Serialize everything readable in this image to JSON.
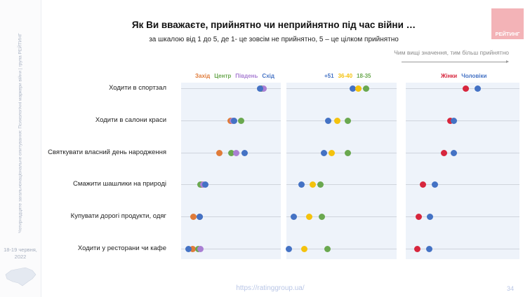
{
  "sidebar": {
    "vertical_text": "Чотирнадцяте загальнонаціональне опитування: Психологічні маркери війни | група РЕЙТИНГ",
    "date": "18-19 червня, 2022"
  },
  "header": {
    "title": "Як Ви вважаєте, прийнятно чи неприйнятно під час війни …",
    "subtitle": "за шкалою від 1 до 5, де 1- це зовсім не прийнятно, 5 – це цілком прийнятно",
    "logo_text": "РЕЙТИНГ",
    "hint": "Чим вищі значення, тим більш прийнятно"
  },
  "footer": {
    "url": "https://ratinggroup.ua/",
    "page": "34"
  },
  "chart_data": {
    "type": "scatter",
    "title": "Як Ви вважаєте, прийнятно чи неприйнятно під час війни …",
    "note": "approximate relative values; no axis shown",
    "categories": [
      "Ходити в спортзал",
      "Ходити в салони краси",
      "Святкувати власний день народження",
      "Смажити шашлики на природі",
      "Купувати дорогі продукти, одяг",
      "Ходити у ресторани чи кафе"
    ],
    "panels": [
      {
        "name": "region",
        "xlim": [
          1,
          3
        ],
        "series": [
          {
            "name": "Захід",
            "color": "#e07b39",
            "values": [
              2.61,
              1.99,
              1.77,
              1.42,
              1.24,
              1.23
            ]
          },
          {
            "name": "Центр",
            "color": "#6aa84f",
            "values": [
              2.61,
              2.21,
              2.01,
              1.39,
              1.37,
              1.35
            ]
          },
          {
            "name": "Південь",
            "color": "#a97fd3",
            "values": [
              2.65,
              2.04,
              2.1,
              1.44,
              1.37,
              1.39
            ]
          },
          {
            "name": "Схід",
            "color": "#4472c4",
            "values": [
              2.58,
              2.07,
              2.28,
              1.49,
              1.38,
              1.15
            ]
          }
        ]
      },
      {
        "name": "age",
        "xlim": [
          1,
          3
        ],
        "series": [
          {
            "name": "+51",
            "color": "#4472c4",
            "values": [
              2.2,
              1.76,
              1.68,
              1.28,
              1.14,
              1.05
            ]
          },
          {
            "name": "36-40",
            "color": "#f4c20d",
            "values": [
              2.31,
              1.92,
              1.82,
              1.48,
              1.41,
              1.33
            ]
          },
          {
            "name": "18-35",
            "color": "#6aa84f",
            "values": [
              2.44,
              2.11,
              2.11,
              1.62,
              1.64,
              1.74
            ]
          }
        ]
      },
      {
        "name": "gender",
        "xlim": [
          1,
          3
        ],
        "series": [
          {
            "name": "Жінки",
            "color": "#d7263d",
            "values": [
              2.06,
              1.78,
              1.67,
              1.3,
              1.23,
              1.2
            ]
          },
          {
            "name": "Чоловіки",
            "color": "#4472c4",
            "values": [
              2.26,
              1.85,
              1.85,
              1.51,
              1.42,
              1.41
            ]
          }
        ]
      }
    ]
  }
}
